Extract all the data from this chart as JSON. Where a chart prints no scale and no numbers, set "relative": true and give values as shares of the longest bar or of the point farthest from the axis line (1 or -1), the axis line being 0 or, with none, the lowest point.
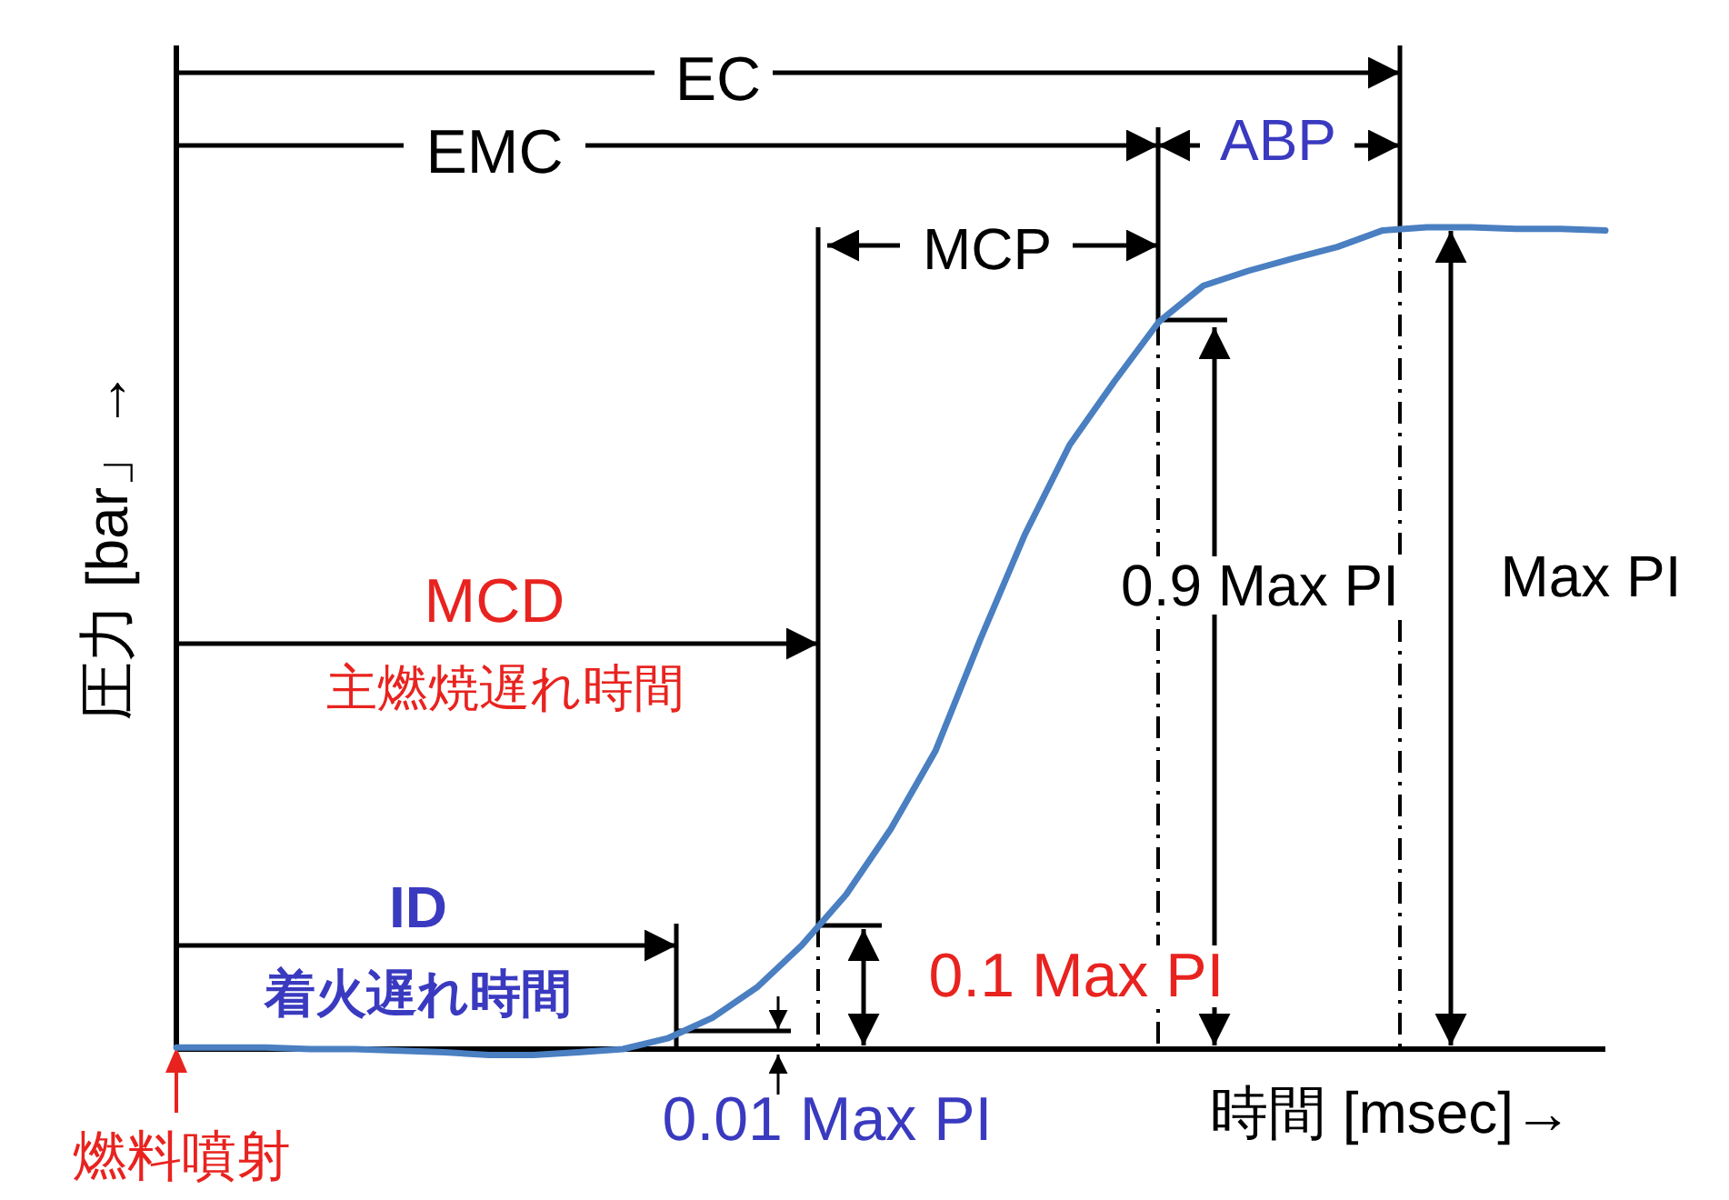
{
  "chart_data": {
    "type": "line",
    "relative": true,
    "xlabel": "時間 [msec]→",
    "ylabel": "圧力 [bar」→",
    "categories": [
      null,
      null,
      null,
      null,
      null,
      null,
      null,
      null,
      null,
      null,
      null,
      null,
      null,
      null,
      null,
      null,
      null,
      null,
      null,
      null,
      null,
      null,
      null,
      null,
      null,
      null,
      null,
      null,
      null,
      null,
      null,
      null,
      null
    ],
    "series": [
      {
        "color": "#4a7fc1",
        "values": [
          0.002,
          0.002,
          0.002,
          0,
          0,
          -0.002,
          -0.004,
          -0.007,
          -0.007,
          -0.004,
          0,
          0.013,
          0.038,
          0.075,
          0.126,
          0.188,
          0.268,
          0.363,
          0.498,
          0.626,
          0.735,
          0.812,
          0.885,
          0.929,
          0.947,
          0.962,
          0.976,
          0.996,
          1,
          1,
          0.998,
          0.998,
          0.996
        ]
      }
    ],
    "annotations": [
      "EC",
      "EMC",
      "ABP",
      "MCP",
      "MCD",
      "主燃焼遅れ時間",
      "ID",
      "着火遅れ時間",
      "0.01 Max PI",
      "0.1 Max PI",
      "0.9 Max PI",
      "Max PI",
      "燃料噴射"
    ],
    "grid": false,
    "marker": "none"
  }
}
